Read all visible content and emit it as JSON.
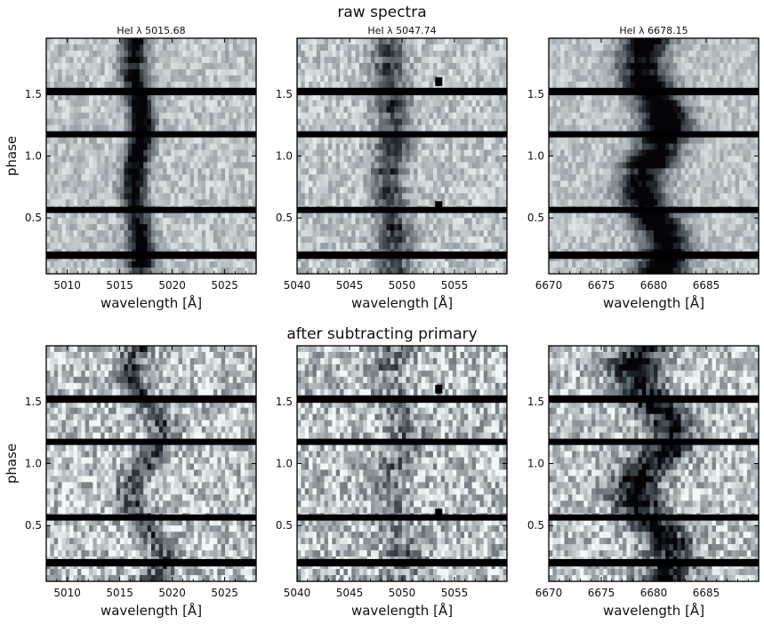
{
  "titles": {
    "top": "raw spectra",
    "bottom": "after subtracting primary"
  },
  "colors": {
    "background": "#ffffff",
    "colormap_low": "#050508",
    "colormap_high": "#f2f8f8",
    "gap": "#000000"
  },
  "chart_data": [
    {
      "type": "heatmap",
      "colormap": "bone",
      "panel_title": "HeI λ 5015.68",
      "section_title": "raw spectra",
      "xlabel": "wavelength [Å]",
      "ylabel": "phase",
      "xlim": [
        5008,
        5028
      ],
      "ylim": [
        0.05,
        1.95
      ],
      "xticks": [
        5010,
        5015,
        5020,
        5025
      ],
      "yticks": [
        0.5,
        1.0,
        1.5
      ],
      "line_center": 5016.7,
      "line_width": 1.2,
      "line_depth": 0.85,
      "velocity_shift": 0.4,
      "noise": 0.15,
      "gaps": [
        [
          0.17,
          0.23
        ],
        [
          0.54,
          0.59
        ],
        [
          1.15,
          1.2
        ],
        [
          1.49,
          1.55
        ]
      ]
    },
    {
      "type": "heatmap",
      "colormap": "bone",
      "panel_title": "HeI λ 5047.74",
      "section_title": "raw spectra",
      "xlabel": "wavelength [Å]",
      "ylabel": "",
      "xlim": [
        5040,
        5060
      ],
      "ylim": [
        0.05,
        1.95
      ],
      "xticks": [
        5040,
        5045,
        5050,
        5055
      ],
      "yticks": [
        0.5,
        1.0,
        1.5
      ],
      "line_center": 5049.0,
      "line_width": 1.6,
      "line_depth": 0.55,
      "velocity_shift": 0.3,
      "noise": 0.17,
      "gaps": [
        [
          0.17,
          0.23
        ],
        [
          0.54,
          0.59
        ],
        [
          1.15,
          1.2
        ],
        [
          1.49,
          1.55
        ]
      ],
      "markers": [
        [
          5053.5,
          0.6
        ],
        [
          5053.5,
          1.6
        ]
      ]
    },
    {
      "type": "heatmap",
      "colormap": "bone",
      "panel_title": "HeI λ 6678.15",
      "section_title": "raw spectra",
      "xlabel": "wavelength [Å]",
      "ylabel": "",
      "xlim": [
        6670,
        6690
      ],
      "ylim": [
        0.05,
        1.95
      ],
      "xticks": [
        6670,
        6675,
        6680,
        6685
      ],
      "yticks": [
        0.5,
        1.0,
        1.5
      ],
      "line_center": 6680.0,
      "line_width": 2.2,
      "line_depth": 0.95,
      "velocity_shift": 1.2,
      "noise": 0.13,
      "gaps": [
        [
          0.17,
          0.23
        ],
        [
          0.54,
          0.59
        ],
        [
          1.15,
          1.2
        ],
        [
          1.49,
          1.55
        ]
      ]
    },
    {
      "type": "heatmap",
      "colormap": "bone",
      "panel_title": "",
      "section_title": "after subtracting primary",
      "xlabel": "wavelength [Å]",
      "ylabel": "phase",
      "xlim": [
        5008,
        5028
      ],
      "ylim": [
        0.05,
        1.95
      ],
      "xticks": [
        5010,
        5015,
        5020,
        5025
      ],
      "yticks": [
        0.5,
        1.0,
        1.5
      ],
      "line_center": 5017.5,
      "line_width": 1.4,
      "line_depth": 0.45,
      "velocity_shift": 1.6,
      "noise": 0.3,
      "gaps": [
        [
          0.17,
          0.23
        ],
        [
          0.54,
          0.59
        ],
        [
          1.15,
          1.2
        ],
        [
          1.49,
          1.55
        ]
      ]
    },
    {
      "type": "heatmap",
      "colormap": "bone",
      "panel_title": "",
      "section_title": "after subtracting primary",
      "xlabel": "wavelength [Å]",
      "ylabel": "",
      "xlim": [
        5040,
        5060
      ],
      "ylim": [
        0.05,
        1.95
      ],
      "xticks": [
        5040,
        5045,
        5050,
        5055
      ],
      "yticks": [
        0.5,
        1.0,
        1.5
      ],
      "line_center": 5049.5,
      "line_width": 1.8,
      "line_depth": 0.3,
      "velocity_shift": 0.8,
      "noise": 0.32,
      "gaps": [
        [
          0.17,
          0.23
        ],
        [
          0.54,
          0.59
        ],
        [
          1.15,
          1.2
        ],
        [
          1.49,
          1.55
        ]
      ],
      "markers": [
        [
          5053.5,
          0.6
        ],
        [
          5053.5,
          1.6
        ]
      ]
    },
    {
      "type": "heatmap",
      "colormap": "bone",
      "panel_title": "",
      "section_title": "after subtracting primary",
      "xlabel": "wavelength [Å]",
      "ylabel": "",
      "xlim": [
        6670,
        6690
      ],
      "ylim": [
        0.05,
        1.95
      ],
      "xticks": [
        6670,
        6675,
        6680,
        6685
      ],
      "yticks": [
        0.5,
        1.0,
        1.5
      ],
      "line_center": 6680.0,
      "line_width": 2.3,
      "line_depth": 0.8,
      "velocity_shift": 1.8,
      "noise": 0.28,
      "gaps": [
        [
          0.17,
          0.23
        ],
        [
          0.54,
          0.59
        ],
        [
          1.15,
          1.2
        ],
        [
          1.49,
          1.55
        ]
      ]
    }
  ]
}
